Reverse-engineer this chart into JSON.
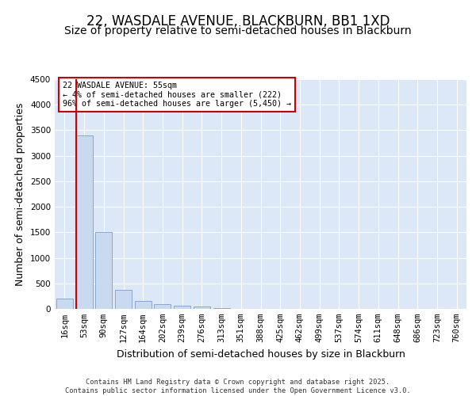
{
  "title1": "22, WASDALE AVENUE, BLACKBURN, BB1 1XD",
  "title2": "Size of property relative to semi-detached houses in Blackburn",
  "xlabel": "Distribution of semi-detached houses by size in Blackburn",
  "ylabel": "Number of semi-detached properties",
  "categories": [
    "16sqm",
    "53sqm",
    "90sqm",
    "127sqm",
    "164sqm",
    "202sqm",
    "239sqm",
    "276sqm",
    "313sqm",
    "351sqm",
    "388sqm",
    "425sqm",
    "462sqm",
    "499sqm",
    "537sqm",
    "574sqm",
    "611sqm",
    "648sqm",
    "686sqm",
    "723sqm",
    "760sqm"
  ],
  "values": [
    200,
    3400,
    1500,
    380,
    150,
    90,
    60,
    50,
    10,
    5,
    3,
    2,
    1,
    0,
    0,
    0,
    0,
    0,
    0,
    0,
    0
  ],
  "bar_color": "#c9d9f0",
  "bar_edge_color": "#7a9ec8",
  "highlight_bar_index": 1,
  "highlight_line_color": "#cc0000",
  "annotation_text": "22 WASDALE AVENUE: 55sqm\n← 4% of semi-detached houses are smaller (222)\n96% of semi-detached houses are larger (5,450) →",
  "annotation_box_color": "#cc0000",
  "ylim": [
    0,
    4500
  ],
  "yticks": [
    0,
    500,
    1000,
    1500,
    2000,
    2500,
    3000,
    3500,
    4000,
    4500
  ],
  "bg_color": "#dce8f8",
  "grid_color": "#ffffff",
  "footer_text": "Contains HM Land Registry data © Crown copyright and database right 2025.\nContains public sector information licensed under the Open Government Licence v3.0.",
  "title1_fontsize": 12,
  "title2_fontsize": 10,
  "axis_fontsize": 9,
  "tick_fontsize": 7.5
}
